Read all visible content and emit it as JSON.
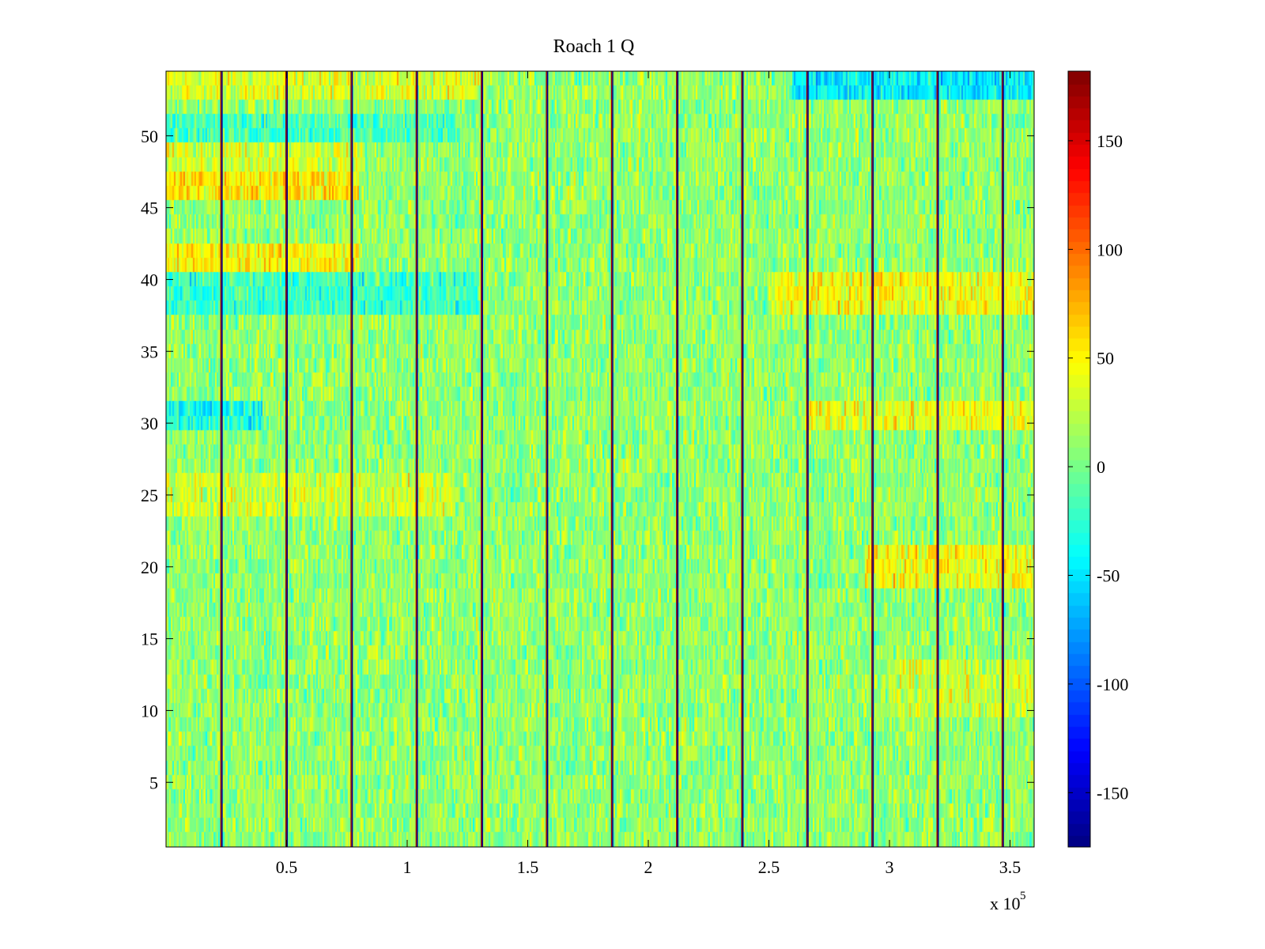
{
  "chart_data": {
    "type": "heatmap",
    "title": "Roach 1 Q",
    "xlabel": "",
    "ylabel": "",
    "xlim": [
      0,
      360000
    ],
    "ylim": [
      0.5,
      54.5
    ],
    "x_multiplier_label": "x 10",
    "x_multiplier_exponent": "5",
    "x_ticks": [
      {
        "value": 50000,
        "label": "0.5"
      },
      {
        "value": 100000,
        "label": "1"
      },
      {
        "value": 150000,
        "label": "1.5"
      },
      {
        "value": 200000,
        "label": "2"
      },
      {
        "value": 250000,
        "label": "2.5"
      },
      {
        "value": 300000,
        "label": "3"
      },
      {
        "value": 350000,
        "label": "3.5"
      }
    ],
    "y_ticks": [
      {
        "value": 5,
        "label": "5"
      },
      {
        "value": 10,
        "label": "10"
      },
      {
        "value": 15,
        "label": "15"
      },
      {
        "value": 20,
        "label": "20"
      },
      {
        "value": 25,
        "label": "25"
      },
      {
        "value": 30,
        "label": "30"
      },
      {
        "value": 35,
        "label": "35"
      },
      {
        "value": 40,
        "label": "40"
      },
      {
        "value": 45,
        "label": "45"
      },
      {
        "value": 50,
        "label": "50"
      }
    ],
    "rows": 54,
    "colormap": "jet",
    "colorbar": {
      "clim": [
        -175,
        182
      ],
      "ticks": [
        {
          "value": -150,
          "label": "-150"
        },
        {
          "value": -100,
          "label": "-100"
        },
        {
          "value": -50,
          "label": "-50"
        },
        {
          "value": 0,
          "label": "0"
        },
        {
          "value": 50,
          "label": "50"
        },
        {
          "value": 100,
          "label": "100"
        },
        {
          "value": 150,
          "label": "150"
        }
      ]
    },
    "background_level": 10,
    "noise_amplitude": 22,
    "row_bands": [
      {
        "rows": [
          41,
          42
        ],
        "x_range": [
          0,
          80000
        ],
        "level": 50
      },
      {
        "rows": [
          46,
          47
        ],
        "x_range": [
          0,
          80000
        ],
        "level": 55
      },
      {
        "rows": [
          48,
          49
        ],
        "x_range": [
          0,
          80000
        ],
        "level": 35
      },
      {
        "rows": [
          50,
          51
        ],
        "x_range": [
          0,
          120000
        ],
        "level": -15
      },
      {
        "rows": [
          53,
          54
        ],
        "x_range": [
          0,
          130000
        ],
        "level": 35
      },
      {
        "rows": [
          53,
          54
        ],
        "x_range": [
          260000,
          360000
        ],
        "level": -45
      },
      {
        "rows": [
          38,
          39,
          40
        ],
        "x_range": [
          0,
          130000
        ],
        "level": -20
      },
      {
        "rows": [
          38,
          39,
          40
        ],
        "x_range": [
          250000,
          360000
        ],
        "level": 45
      },
      {
        "rows": [
          30,
          31
        ],
        "x_range": [
          0,
          40000
        ],
        "level": -30
      },
      {
        "rows": [
          30,
          31
        ],
        "x_range": [
          265000,
          360000
        ],
        "level": 40
      },
      {
        "rows": [
          19,
          20,
          21
        ],
        "x_range": [
          290000,
          360000
        ],
        "level": 45
      },
      {
        "rows": [
          24,
          25,
          26
        ],
        "x_range": [
          0,
          120000
        ],
        "level": 30
      },
      {
        "rows": [
          10,
          11,
          12,
          13
        ],
        "x_range": [
          300000,
          360000
        ],
        "level": 30
      }
    ],
    "artifact_lines_x": [
      23000,
      50000,
      77000,
      104000,
      131000,
      158000,
      185000,
      212000,
      239000,
      266000,
      293000,
      320000,
      347000
    ]
  }
}
